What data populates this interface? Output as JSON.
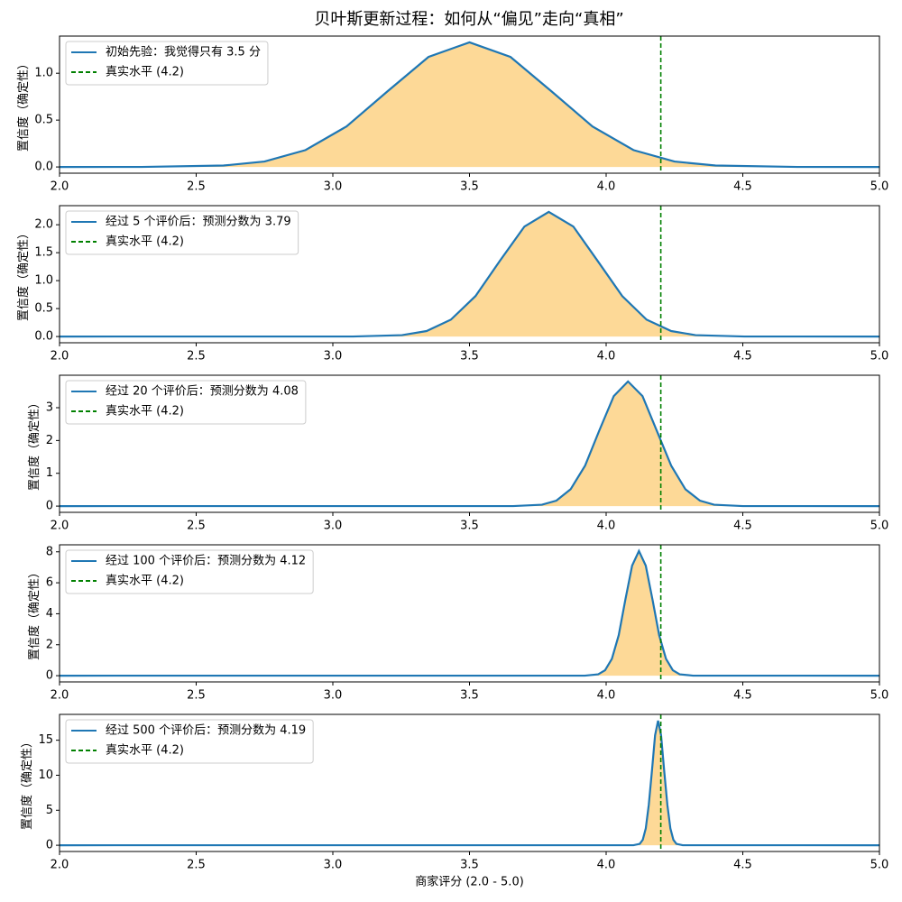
{
  "title": "贝叶斯更新过程：如何从“偏见”走向“真相”",
  "chart_data": [
    {
      "type": "line",
      "ylabel": "置信度（确定性）",
      "legend": "upper left",
      "fill_color": "#fdd997",
      "x": [
        2.0,
        2.3,
        2.6,
        2.75,
        2.9,
        3.05,
        3.2,
        3.35,
        3.5,
        3.65,
        3.8,
        3.95,
        4.1,
        4.25,
        4.4,
        4.7,
        5.0
      ],
      "series": [
        {
          "name": "初始先验：我觉得只有 3.5 分",
          "color": "#1f77b4",
          "values": [
            0,
            0.0004,
            0.015,
            0.058,
            0.18,
            0.432,
            0.807,
            1.174,
            1.33,
            1.174,
            0.807,
            0.432,
            0.18,
            0.058,
            0.015,
            0.0004,
            0
          ]
        }
      ],
      "vlines": [
        {
          "name": "真实水平 (4.2)",
          "color": "#008000",
          "x": 4.2
        }
      ],
      "xlim": [
        2,
        5
      ],
      "xticks": [
        {
          "value": 2,
          "label": "2.0"
        },
        {
          "value": 2.5,
          "label": "2.5"
        },
        {
          "value": 3,
          "label": "3.0"
        },
        {
          "value": 3.5,
          "label": "3.5"
        },
        {
          "value": 4,
          "label": "4.0"
        },
        {
          "value": 4.5,
          "label": "4.5"
        },
        {
          "value": 5,
          "label": "5.0"
        }
      ],
      "ylim": [
        -0.0665,
        1.3965
      ],
      "yticks": [
        {
          "value": 0,
          "label": "0.0"
        },
        0.5,
        {
          "value": 1,
          "label": "1.0"
        }
      ]
    },
    {
      "type": "line",
      "ylabel": "置信度（确定性）",
      "legend": "upper left",
      "fill_color": "#fdd997",
      "x": [
        2.0,
        3.074,
        3.253,
        3.343,
        3.432,
        3.522,
        3.611,
        3.701,
        3.79,
        3.88,
        3.969,
        4.059,
        4.148,
        4.238,
        4.327,
        4.506,
        5.0
      ],
      "series": [
        {
          "name": "经过 5 个评价后：预测分数为 3.79",
          "color": "#1f77b4",
          "values": [
            0,
            0.0007,
            0.025,
            0.098,
            0.302,
            0.724,
            1.352,
            1.968,
            2.23,
            1.968,
            1.352,
            0.724,
            0.302,
            0.098,
            0.025,
            0.0007,
            0
          ]
        }
      ],
      "vlines": [
        {
          "name": "真实水平 (4.2)",
          "color": "#008000",
          "x": 4.2
        }
      ],
      "xlim": [
        2,
        5
      ],
      "xticks": [
        {
          "value": 2,
          "label": "2.0"
        },
        {
          "value": 2.5,
          "label": "2.5"
        },
        {
          "value": 3,
          "label": "3.0"
        },
        {
          "value": 3.5,
          "label": "3.5"
        },
        {
          "value": 4,
          "label": "4.0"
        },
        {
          "value": 4.5,
          "label": "4.5"
        },
        {
          "value": 5,
          "label": "5.0"
        }
      ],
      "ylim": [
        -0.1115,
        2.3415
      ],
      "yticks": [
        {
          "value": 0,
          "label": "0.0"
        },
        0.5,
        {
          "value": 1,
          "label": "1.0"
        },
        1.5,
        {
          "value": 2,
          "label": "2.0"
        }
      ]
    },
    {
      "type": "line",
      "ylabel": "置信度（确定性）",
      "legend": "upper left",
      "fill_color": "#fdd997",
      "x": [
        2.0,
        3.66,
        3.765,
        3.818,
        3.87,
        3.923,
        3.975,
        4.028,
        4.08,
        4.133,
        4.185,
        4.238,
        4.29,
        4.343,
        4.395,
        4.5,
        5.0
      ],
      "series": [
        {
          "name": "经过 20 个评价后：预测分数为 4.08",
          "color": "#1f77b4",
          "values": [
            0,
            0.0013,
            0.042,
            0.167,
            0.514,
            1.234,
            2.305,
            3.354,
            3.8,
            3.354,
            2.305,
            1.234,
            0.514,
            0.167,
            0.042,
            0.0013,
            0
          ]
        }
      ],
      "vlines": [
        {
          "name": "真实水平 (4.2)",
          "color": "#008000",
          "x": 4.2
        }
      ],
      "xlim": [
        2,
        5
      ],
      "xticks": [
        {
          "value": 2,
          "label": "2.0"
        },
        {
          "value": 2.5,
          "label": "2.5"
        },
        {
          "value": 3,
          "label": "3.0"
        },
        {
          "value": 3.5,
          "label": "3.5"
        },
        {
          "value": 4,
          "label": "4.0"
        },
        {
          "value": 4.5,
          "label": "4.5"
        },
        {
          "value": 5,
          "label": "5.0"
        }
      ],
      "ylim": [
        -0.19,
        3.99
      ],
      "yticks": [
        0,
        1,
        2,
        3
      ]
    },
    {
      "type": "line",
      "ylabel": "置信度（确定性）",
      "legend": "upper left",
      "fill_color": "#fdd997",
      "x": [
        2.0,
        3.922,
        3.971,
        3.996,
        4.021,
        4.046,
        4.07,
        4.095,
        4.12,
        4.145,
        4.17,
        4.194,
        4.219,
        4.244,
        4.269,
        4.318,
        5.0
      ],
      "series": [
        {
          "name": "经过 100 个评价后：预测分数为 4.12",
          "color": "#1f77b4",
          "values": [
            0,
            0.0027,
            0.089,
            0.353,
            1.089,
            2.614,
            4.882,
            7.104,
            8.05,
            7.104,
            4.882,
            2.614,
            1.089,
            0.353,
            0.089,
            0.0027,
            0
          ]
        }
      ],
      "vlines": [
        {
          "name": "真实水平 (4.2)",
          "color": "#008000",
          "x": 4.2
        }
      ],
      "xlim": [
        2,
        5
      ],
      "xticks": [
        {
          "value": 2,
          "label": "2.0"
        },
        {
          "value": 2.5,
          "label": "2.5"
        },
        {
          "value": 3,
          "label": "3.0"
        },
        {
          "value": 3.5,
          "label": "3.5"
        },
        {
          "value": 4,
          "label": "4.0"
        },
        {
          "value": 4.5,
          "label": "4.5"
        },
        {
          "value": 5,
          "label": "5.0"
        }
      ],
      "ylim": [
        -0.4025,
        8.4525
      ],
      "yticks": [
        0,
        2,
        4,
        6,
        8
      ]
    },
    {
      "type": "line",
      "ylabel": "置信度（确定性）",
      "xlabel": "商家评分 (2.0 - 5.0)",
      "legend": "upper left",
      "fill_color": "#fdd997",
      "x": [
        2.0,
        4.1,
        4.123,
        4.134,
        4.145,
        4.156,
        4.168,
        4.179,
        4.19,
        4.201,
        4.212,
        4.224,
        4.235,
        4.246,
        4.257,
        4.28,
        5.0
      ],
      "series": [
        {
          "name": "经过 500 个评价后：预测分数为 4.19",
          "color": "#1f77b4",
          "values": [
            0,
            0.006,
            0.198,
            0.781,
            2.408,
            5.78,
            10.796,
            15.709,
            17.8,
            15.709,
            10.796,
            5.78,
            2.408,
            0.781,
            0.198,
            0.006,
            0
          ]
        }
      ],
      "vlines": [
        {
          "name": "真实水平 (4.2)",
          "color": "#008000",
          "x": 4.2
        }
      ],
      "xlim": [
        2,
        5
      ],
      "xticks": [
        {
          "value": 2,
          "label": "2.0"
        },
        {
          "value": 2.5,
          "label": "2.5"
        },
        {
          "value": 3,
          "label": "3.0"
        },
        {
          "value": 3.5,
          "label": "3.5"
        },
        {
          "value": 4,
          "label": "4.0"
        },
        {
          "value": 4.5,
          "label": "4.5"
        },
        {
          "value": 5,
          "label": "5.0"
        }
      ],
      "ylim": [
        -0.89,
        18.69
      ],
      "yticks": [
        0,
        5,
        10,
        15
      ]
    }
  ]
}
